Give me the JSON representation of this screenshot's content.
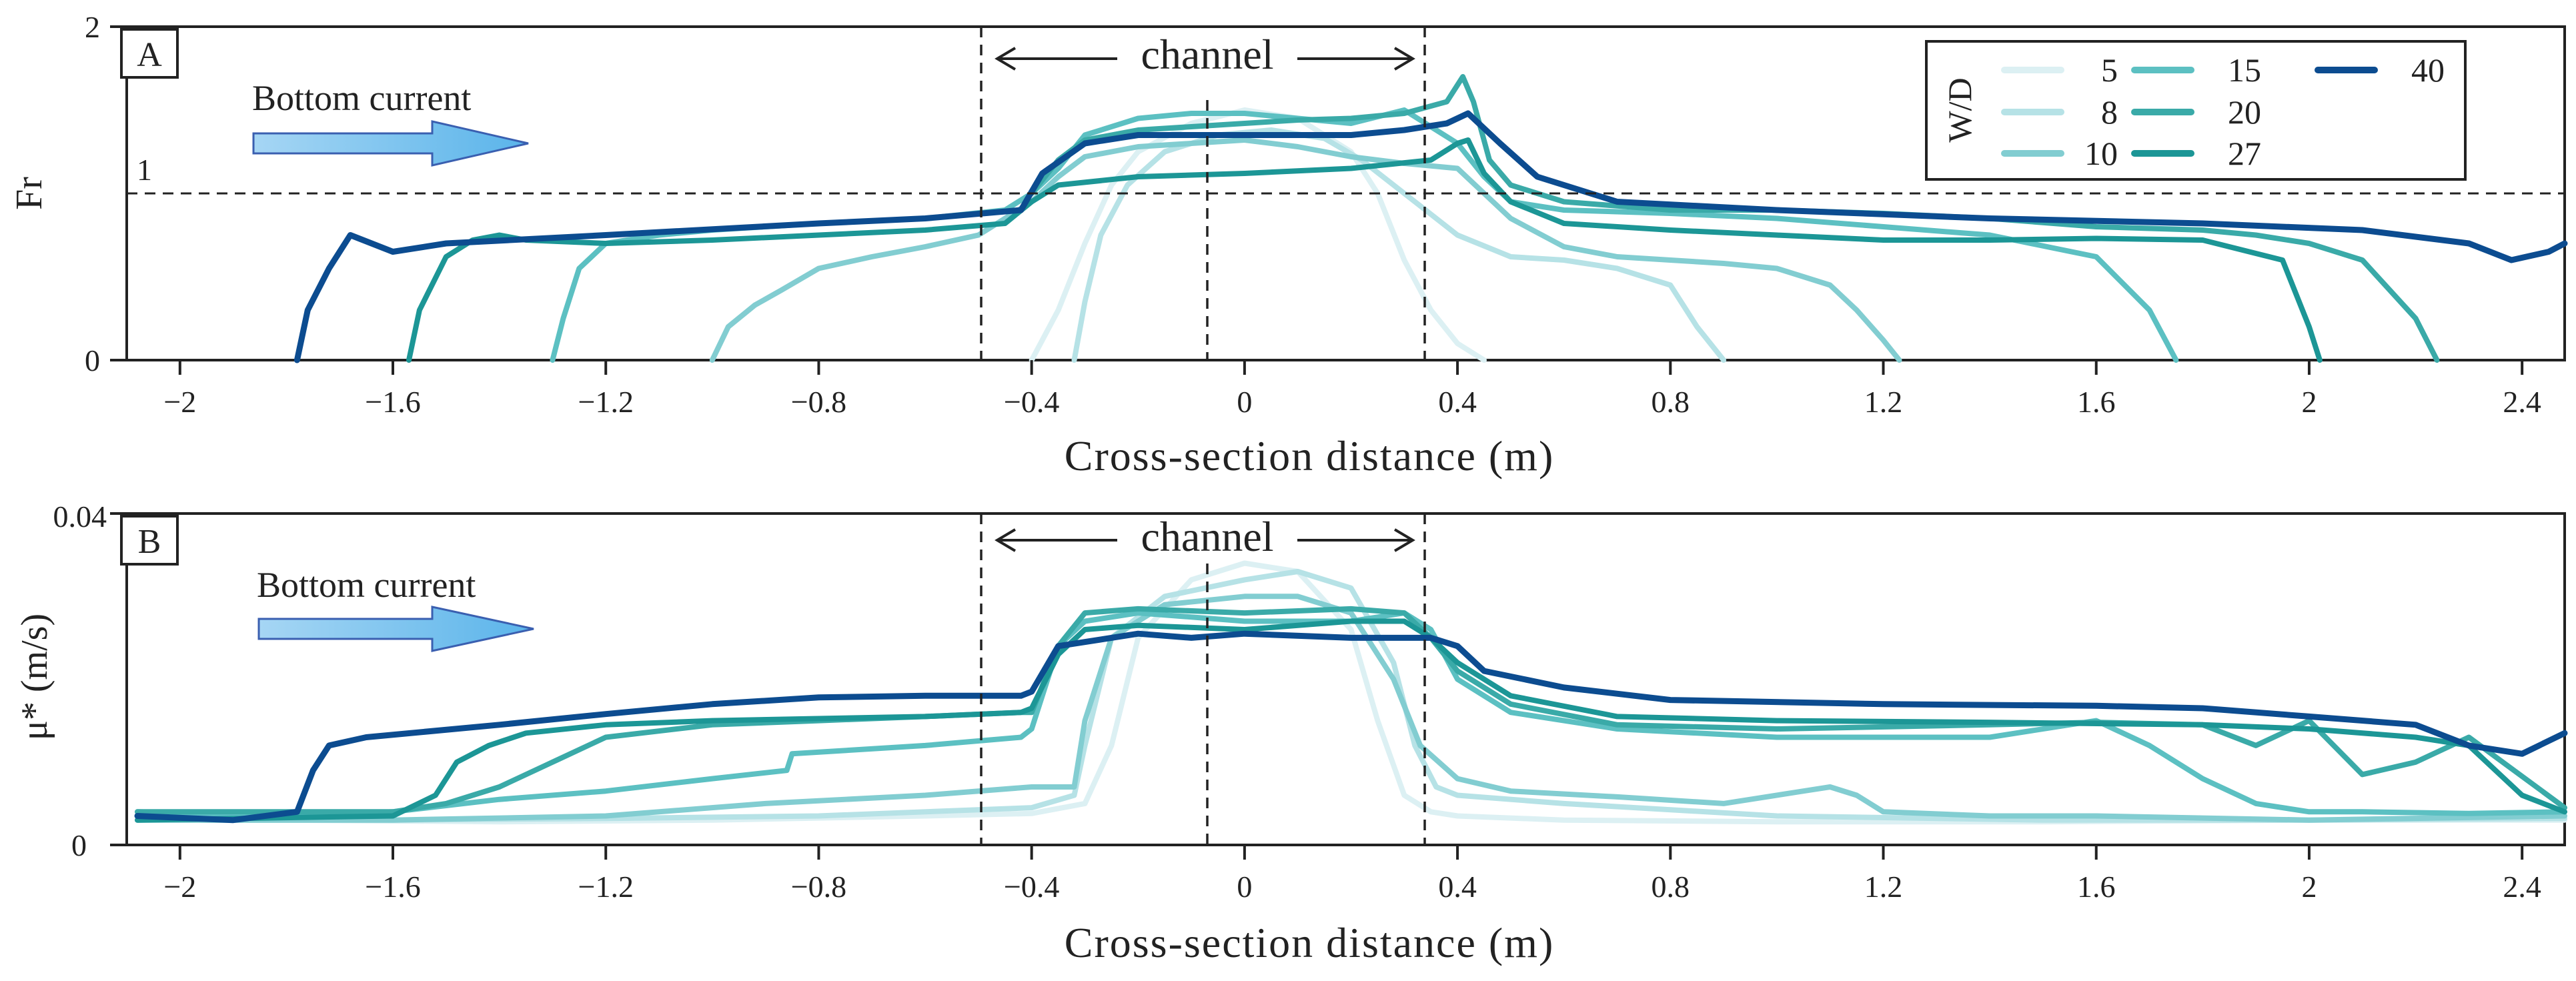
{
  "legend": {
    "title": "W/D",
    "items": [
      {
        "label": "5",
        "color": "#dcf0f3"
      },
      {
        "label": "8",
        "color": "#b6e2e6"
      },
      {
        "label": "10",
        "color": "#82cdd1"
      },
      {
        "label": "15",
        "color": "#5cc0c2"
      },
      {
        "label": "20",
        "color": "#3aaaa8"
      },
      {
        "label": "27",
        "color": "#1c9696"
      },
      {
        "label": "40",
        "color": "#0c4c90"
      }
    ]
  },
  "chart_data": [
    {
      "type": "line",
      "panel": "A",
      "title": "",
      "xlabel": "Cross-section distance (m)",
      "ylabel": "Fr",
      "xlim": [
        -2.1,
        2.48
      ],
      "ylim": [
        0,
        2
      ],
      "yticks": [
        {
          "v": 0,
          "label": "0"
        },
        {
          "v": 2,
          "label": "2"
        }
      ],
      "xticks": [
        {
          "v": -2,
          "label": "−2"
        },
        {
          "v": -1.6,
          "label": "−1.6"
        },
        {
          "v": -1.2,
          "label": "−1.2"
        },
        {
          "v": -0.8,
          "label": "−0.8"
        },
        {
          "v": -0.4,
          "label": "−0.4"
        },
        {
          "v": 0,
          "label": "0"
        },
        {
          "v": 0.4,
          "label": "0.4"
        },
        {
          "v": 0.8,
          "label": "0.8"
        },
        {
          "v": 1.2,
          "label": "1.2"
        },
        {
          "v": 1.6,
          "label": "1.6"
        },
        {
          "v": 2,
          "label": "2"
        },
        {
          "v": 2.4,
          "label": "2.4"
        }
      ],
      "reference_line": {
        "y": 1,
        "label": "1"
      },
      "vlines": [
        -0.4,
        0,
        0.4
      ],
      "annotations": {
        "channel": "channel",
        "arrow_text": "Bottom current",
        "panel_label": "A"
      },
      "series": [
        {
          "name": "5",
          "x": [
            -0.4,
            -0.35,
            -0.3,
            -0.25,
            -0.2,
            -0.1,
            0,
            0.1,
            0.2,
            0.25,
            0.3,
            0.35,
            0.4,
            0.45
          ],
          "y": [
            0,
            0.3,
            0.7,
            1.05,
            1.25,
            1.42,
            1.5,
            1.45,
            1.25,
            1.0,
            0.6,
            0.3,
            0.1,
            0
          ]
        },
        {
          "name": "8",
          "x": [
            -0.32,
            -0.3,
            -0.27,
            -0.22,
            -0.15,
            -0.05,
            0.05,
            0.15,
            0.22,
            0.3,
            0.4,
            0.5,
            0.6,
            0.7,
            0.8,
            0.85,
            0.9
          ],
          "y": [
            0,
            0.35,
            0.75,
            1.05,
            1.25,
            1.35,
            1.38,
            1.33,
            1.2,
            1.0,
            0.75,
            0.62,
            0.6,
            0.55,
            0.45,
            0.2,
            0
          ]
        },
        {
          "name": "10",
          "x": [
            -1.0,
            -0.97,
            -0.92,
            -0.87,
            -0.8,
            -0.7,
            -0.6,
            -0.5,
            -0.4,
            -0.35,
            -0.3,
            -0.2,
            -0.1,
            0,
            0.1,
            0.2,
            0.3,
            0.4,
            0.5,
            0.6,
            0.7,
            0.8,
            0.9,
            1.0,
            1.1,
            1.15,
            1.2,
            1.23
          ],
          "y": [
            0,
            0.2,
            0.33,
            0.42,
            0.55,
            0.62,
            0.68,
            0.75,
            0.95,
            1.1,
            1.22,
            1.28,
            1.3,
            1.32,
            1.28,
            1.22,
            1.18,
            1.15,
            0.85,
            0.68,
            0.62,
            0.6,
            0.58,
            0.55,
            0.45,
            0.3,
            0.12,
            0
          ]
        },
        {
          "name": "15",
          "x": [
            -1.3,
            -1.28,
            -1.25,
            -1.2,
            -1.1,
            -1.0,
            -0.9,
            -0.8,
            -0.6,
            -0.45,
            -0.4,
            -0.35,
            -0.3,
            -0.2,
            -0.1,
            0,
            0.1,
            0.2,
            0.3,
            0.35,
            0.4,
            0.45,
            0.5,
            0.6,
            0.8,
            1.0,
            1.2,
            1.4,
            1.6,
            1.7,
            1.75
          ],
          "y": [
            0,
            0.25,
            0.55,
            0.7,
            0.75,
            0.78,
            0.8,
            0.82,
            0.85,
            0.9,
            1.0,
            1.15,
            1.35,
            1.45,
            1.48,
            1.48,
            1.45,
            1.42,
            1.5,
            1.4,
            1.3,
            1.1,
            0.95,
            0.9,
            0.88,
            0.85,
            0.8,
            0.75,
            0.62,
            0.3,
            0
          ]
        },
        {
          "name": "20",
          "x": [
            -0.4,
            -0.35,
            -0.3,
            -0.2,
            -0.1,
            0,
            0.1,
            0.2,
            0.3,
            0.38,
            0.41,
            0.43,
            0.46,
            0.5,
            0.6,
            0.8,
            1.0,
            1.2,
            1.4,
            1.6,
            1.8,
            1.9,
            2.0,
            2.1,
            2.2,
            2.24
          ],
          "y": [
            1.0,
            1.2,
            1.32,
            1.38,
            1.4,
            1.42,
            1.44,
            1.45,
            1.48,
            1.55,
            1.7,
            1.55,
            1.2,
            1.05,
            0.95,
            0.9,
            0.9,
            0.88,
            0.85,
            0.8,
            0.78,
            0.75,
            0.7,
            0.6,
            0.25,
            0
          ]
        },
        {
          "name": "27",
          "x": [
            -1.57,
            -1.55,
            -1.5,
            -1.45,
            -1.4,
            -1.35,
            -1.2,
            -1.0,
            -0.8,
            -0.6,
            -0.45,
            -0.4,
            -0.35,
            -0.2,
            0,
            0.2,
            0.35,
            0.4,
            0.42,
            0.45,
            0.5,
            0.6,
            0.8,
            1.0,
            1.2,
            1.4,
            1.6,
            1.8,
            1.95,
            2.0,
            2.02
          ],
          "y": [
            0,
            0.3,
            0.62,
            0.72,
            0.75,
            0.72,
            0.7,
            0.72,
            0.75,
            0.78,
            0.82,
            0.95,
            1.05,
            1.1,
            1.12,
            1.15,
            1.2,
            1.3,
            1.32,
            1.12,
            0.95,
            0.82,
            0.78,
            0.75,
            0.72,
            0.72,
            0.73,
            0.72,
            0.6,
            0.2,
            0
          ]
        },
        {
          "name": "40",
          "x": [
            -1.78,
            -1.76,
            -1.72,
            -1.68,
            -1.64,
            -1.6,
            -1.5,
            -1.2,
            -0.8,
            -0.6,
            -0.42,
            -0.38,
            -0.3,
            -0.2,
            0,
            0.2,
            0.3,
            0.38,
            0.42,
            0.48,
            0.55,
            0.7,
            1.0,
            1.4,
            1.8,
            2.1,
            2.3,
            2.38,
            2.45,
            2.48
          ],
          "y": [
            0,
            0.3,
            0.55,
            0.75,
            0.7,
            0.65,
            0.7,
            0.75,
            0.82,
            0.85,
            0.9,
            1.12,
            1.3,
            1.35,
            1.35,
            1.35,
            1.38,
            1.42,
            1.48,
            1.3,
            1.1,
            0.95,
            0.9,
            0.85,
            0.82,
            0.78,
            0.7,
            0.6,
            0.65,
            0.7
          ]
        }
      ]
    },
    {
      "type": "line",
      "panel": "B",
      "title": "",
      "xlabel": "Cross-section distance (m)",
      "ylabel": "μ* (m/s)",
      "xlim": [
        -2.1,
        2.48
      ],
      "ylim": [
        0,
        0.04
      ],
      "yticks": [
        {
          "v": 0,
          "label": "0"
        },
        {
          "v": 0.04,
          "label": "0.04"
        }
      ],
      "xticks": [
        {
          "v": -2,
          "label": "−2"
        },
        {
          "v": -1.6,
          "label": "−1.6"
        },
        {
          "v": -1.2,
          "label": "−1.2"
        },
        {
          "v": -0.8,
          "label": "−0.8"
        },
        {
          "v": -0.4,
          "label": "−0.4"
        },
        {
          "v": 0,
          "label": "0"
        },
        {
          "v": 0.4,
          "label": "0.4"
        },
        {
          "v": 0.8,
          "label": "0.8"
        },
        {
          "v": 1.2,
          "label": "1.2"
        },
        {
          "v": 1.6,
          "label": "1.6"
        },
        {
          "v": 2,
          "label": "2"
        },
        {
          "v": 2.4,
          "label": "2.4"
        }
      ],
      "vlines": [
        -0.4,
        0,
        0.4
      ],
      "annotations": {
        "channel": "channel",
        "arrow_text": "Bottom current",
        "panel_label": "B"
      },
      "series": [
        {
          "name": "5",
          "x": [
            -2.08,
            -1.8,
            -1.4,
            -1.0,
            -0.6,
            -0.4,
            -0.3,
            -0.25,
            -0.2,
            -0.1,
            0,
            0.1,
            0.2,
            0.25,
            0.3,
            0.35,
            0.4,
            0.6,
            1.0,
            1.5,
            2.0,
            2.48
          ],
          "y": [
            0.003,
            0.003,
            0.0028,
            0.003,
            0.0035,
            0.0038,
            0.005,
            0.012,
            0.025,
            0.032,
            0.034,
            0.033,
            0.026,
            0.015,
            0.006,
            0.004,
            0.0035,
            0.003,
            0.0028,
            0.0028,
            0.003,
            0.003
          ]
        },
        {
          "name": "8",
          "x": [
            -2.08,
            -1.6,
            -1.2,
            -0.8,
            -0.4,
            -0.32,
            -0.3,
            -0.25,
            -0.15,
            0,
            0.1,
            0.2,
            0.28,
            0.32,
            0.36,
            0.4,
            0.6,
            1.0,
            1.5,
            2.0,
            2.48
          ],
          "y": [
            0.003,
            0.003,
            0.0032,
            0.0035,
            0.0045,
            0.006,
            0.012,
            0.025,
            0.03,
            0.032,
            0.033,
            0.031,
            0.022,
            0.012,
            0.007,
            0.006,
            0.005,
            0.0035,
            0.003,
            0.003,
            0.0032
          ]
        },
        {
          "name": "10",
          "x": [
            -2.08,
            -1.6,
            -1.2,
            -0.9,
            -0.6,
            -0.4,
            -0.32,
            -0.3,
            -0.25,
            -0.15,
            0,
            0.1,
            0.2,
            0.28,
            0.33,
            0.4,
            0.5,
            0.7,
            0.9,
            1.05,
            1.1,
            1.15,
            1.2,
            1.4,
            1.6,
            2.0,
            2.48
          ],
          "y": [
            0.003,
            0.003,
            0.0035,
            0.005,
            0.006,
            0.007,
            0.007,
            0.015,
            0.025,
            0.029,
            0.03,
            0.03,
            0.028,
            0.02,
            0.012,
            0.008,
            0.0065,
            0.0058,
            0.005,
            0.0065,
            0.007,
            0.006,
            0.004,
            0.0035,
            0.0035,
            0.003,
            0.0035
          ]
        },
        {
          "name": "15",
          "x": [
            -2.08,
            -1.8,
            -1.6,
            -1.4,
            -1.2,
            -1.0,
            -0.86,
            -0.85,
            -0.6,
            -0.42,
            -0.4,
            -0.35,
            -0.3,
            -0.2,
            0,
            0.2,
            0.3,
            0.35,
            0.4,
            0.5,
            0.7,
            1.0,
            1.4,
            1.6,
            1.7,
            1.8,
            1.9,
            2.0,
            2.1,
            2.3,
            2.48
          ],
          "y": [
            0.004,
            0.0035,
            0.004,
            0.0055,
            0.0065,
            0.008,
            0.009,
            0.011,
            0.012,
            0.013,
            0.014,
            0.024,
            0.027,
            0.028,
            0.027,
            0.027,
            0.028,
            0.026,
            0.02,
            0.016,
            0.014,
            0.013,
            0.013,
            0.015,
            0.012,
            0.008,
            0.005,
            0.004,
            0.004,
            0.0038,
            0.004
          ]
        },
        {
          "name": "20",
          "x": [
            -2.08,
            -1.6,
            -1.5,
            -1.4,
            -1.3,
            -1.2,
            -1.0,
            -0.8,
            -0.6,
            -0.42,
            -0.4,
            -0.35,
            -0.3,
            -0.2,
            0,
            0.2,
            0.3,
            0.35,
            0.4,
            0.5,
            0.7,
            1.0,
            1.4,
            1.6,
            1.8,
            1.9,
            2.0,
            2.1,
            2.2,
            2.3,
            2.48
          ],
          "y": [
            0.004,
            0.004,
            0.005,
            0.007,
            0.01,
            0.013,
            0.0145,
            0.015,
            0.0155,
            0.016,
            0.016,
            0.024,
            0.028,
            0.0285,
            0.028,
            0.0285,
            0.028,
            0.025,
            0.021,
            0.017,
            0.0145,
            0.014,
            0.0145,
            0.0148,
            0.0145,
            0.012,
            0.015,
            0.0085,
            0.01,
            0.013,
            0.0045
          ]
        },
        {
          "name": "27",
          "x": [
            -2.08,
            -1.6,
            -1.52,
            -1.48,
            -1.42,
            -1.35,
            -1.2,
            -1.0,
            -0.6,
            -0.42,
            -0.4,
            -0.35,
            -0.3,
            -0.2,
            0,
            0.2,
            0.3,
            0.35,
            0.4,
            0.5,
            0.7,
            1.0,
            1.4,
            1.8,
            2.0,
            2.2,
            2.3,
            2.4,
            2.48
          ],
          "y": [
            0.003,
            0.0035,
            0.006,
            0.01,
            0.012,
            0.0135,
            0.0145,
            0.015,
            0.0155,
            0.016,
            0.0165,
            0.023,
            0.026,
            0.0265,
            0.026,
            0.027,
            0.027,
            0.025,
            0.022,
            0.018,
            0.0155,
            0.015,
            0.0148,
            0.0145,
            0.014,
            0.013,
            0.012,
            0.006,
            0.004
          ]
        },
        {
          "name": "40",
          "x": [
            -2.08,
            -1.9,
            -1.78,
            -1.75,
            -1.72,
            -1.65,
            -1.4,
            -1.2,
            -1.0,
            -0.8,
            -0.6,
            -0.42,
            -0.4,
            -0.35,
            -0.2,
            -0.1,
            0,
            0.2,
            0.35,
            0.4,
            0.45,
            0.6,
            0.8,
            1.2,
            1.6,
            1.8,
            2.0,
            2.2,
            2.3,
            2.4,
            2.48
          ],
          "y": [
            0.0035,
            0.003,
            0.004,
            0.009,
            0.012,
            0.013,
            0.0145,
            0.0158,
            0.017,
            0.0178,
            0.018,
            0.018,
            0.0185,
            0.024,
            0.0255,
            0.025,
            0.0255,
            0.025,
            0.025,
            0.024,
            0.021,
            0.019,
            0.0175,
            0.017,
            0.0168,
            0.0165,
            0.0155,
            0.0145,
            0.012,
            0.011,
            0.0135
          ]
        }
      ]
    }
  ]
}
